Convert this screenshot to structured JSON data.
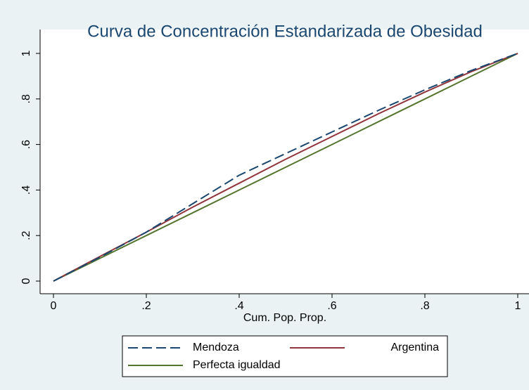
{
  "chart_data": {
    "type": "line",
    "title": "Curva de Concentración Estandarizada de Obesidad",
    "x_label": "Cum. Pop. Prop.",
    "x": [
      0,
      0.1,
      0.2,
      0.3,
      0.4,
      0.5,
      0.6,
      0.7,
      0.8,
      0.9,
      1
    ],
    "series": [
      {
        "name": "Mendoza",
        "color": "#1a476f",
        "dash": true,
        "values": [
          0,
          0.105,
          0.215,
          0.34,
          0.465,
          0.56,
          0.655,
          0.75,
          0.84,
          0.925,
          1
        ]
      },
      {
        "name": "Argentina",
        "color": "#90353b",
        "dash": false,
        "values": [
          0,
          0.108,
          0.215,
          0.325,
          0.43,
          0.535,
          0.635,
          0.735,
          0.83,
          0.92,
          1
        ]
      },
      {
        "name": "Perfecta igualdad",
        "color": "#55752f",
        "dash": false,
        "values": [
          0,
          0.1,
          0.2,
          0.3,
          0.4,
          0.5,
          0.6,
          0.7,
          0.8,
          0.9,
          1
        ]
      }
    ],
    "xlim": [
      0,
      1
    ],
    "ylim": [
      0,
      1
    ],
    "xticks": [
      0,
      {
        "value": 0.2,
        "label": ".2"
      },
      {
        "value": 0.4,
        "label": ".4"
      },
      {
        "value": 0.6,
        "label": ".6"
      },
      {
        "value": 0.8,
        "label": ".8"
      },
      1
    ],
    "yticks": [
      0,
      {
        "value": 0.2,
        "label": ".2"
      },
      {
        "value": 0.4,
        "label": ".4"
      },
      {
        "value": 0.6,
        "label": ".6"
      },
      {
        "value": 0.8,
        "label": ".8"
      },
      1
    ],
    "legend": "bottom"
  }
}
